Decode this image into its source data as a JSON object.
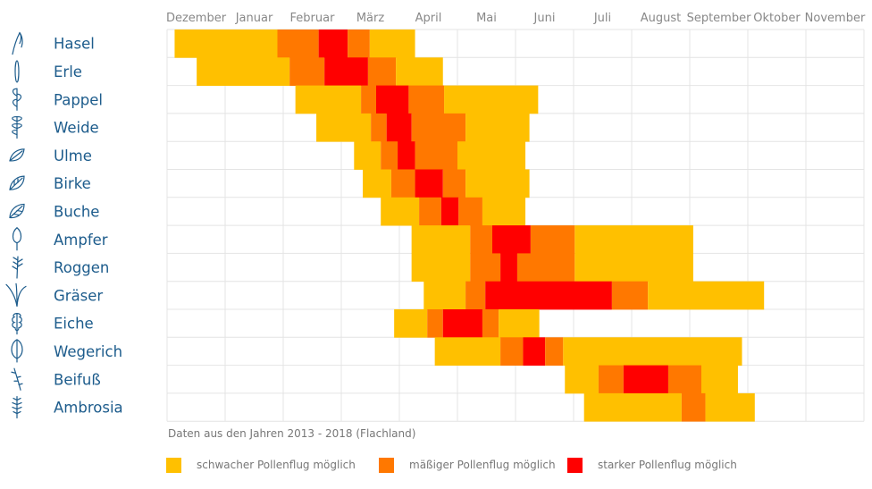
{
  "chart_data": {
    "type": "timeline",
    "months": [
      "Dezember",
      "Januar",
      "Februar",
      "März",
      "April",
      "Mai",
      "Juni",
      "Juli",
      "August",
      "September",
      "Oktober",
      "November"
    ],
    "colors": {
      "weak": "#ffc000",
      "moderate": "#ff7800",
      "strong": "#ff0000"
    },
    "plants": [
      {
        "name": "Hasel",
        "icon": "hazel-catkin-icon",
        "segments": [
          {
            "start": 0.13,
            "end": 1.9,
            "level": "weak"
          },
          {
            "start": 1.9,
            "end": 2.61,
            "level": "moderate"
          },
          {
            "start": 2.61,
            "end": 3.11,
            "level": "strong"
          },
          {
            "start": 3.11,
            "end": 3.49,
            "level": "moderate"
          },
          {
            "start": 3.49,
            "end": 4.27,
            "level": "weak"
          }
        ]
      },
      {
        "name": "Erle",
        "icon": "alder-catkin-icon",
        "segments": [
          {
            "start": 0.51,
            "end": 2.11,
            "level": "weak"
          },
          {
            "start": 2.11,
            "end": 2.71,
            "level": "moderate"
          },
          {
            "start": 2.71,
            "end": 3.46,
            "level": "strong"
          },
          {
            "start": 3.46,
            "end": 3.94,
            "level": "moderate"
          },
          {
            "start": 3.94,
            "end": 4.75,
            "level": "weak"
          }
        ]
      },
      {
        "name": "Pappel",
        "icon": "poplar-branch-icon",
        "segments": [
          {
            "start": 2.21,
            "end": 3.34,
            "level": "weak"
          },
          {
            "start": 3.34,
            "end": 3.6,
            "level": "moderate"
          },
          {
            "start": 3.6,
            "end": 4.16,
            "level": "strong"
          },
          {
            "start": 4.16,
            "end": 4.77,
            "level": "moderate"
          },
          {
            "start": 4.77,
            "end": 6.39,
            "level": "weak"
          }
        ]
      },
      {
        "name": "Weide",
        "icon": "willow-branch-icon",
        "segments": [
          {
            "start": 2.57,
            "end": 3.51,
            "level": "weak"
          },
          {
            "start": 3.51,
            "end": 3.78,
            "level": "moderate"
          },
          {
            "start": 3.78,
            "end": 4.21,
            "level": "strong"
          },
          {
            "start": 4.21,
            "end": 5.14,
            "level": "moderate"
          },
          {
            "start": 5.14,
            "end": 6.24,
            "level": "weak"
          }
        ]
      },
      {
        "name": "Ulme",
        "icon": "elm-leaf-icon",
        "segments": [
          {
            "start": 3.22,
            "end": 3.68,
            "level": "weak"
          },
          {
            "start": 3.68,
            "end": 3.97,
            "level": "moderate"
          },
          {
            "start": 3.97,
            "end": 4.27,
            "level": "strong"
          },
          {
            "start": 4.27,
            "end": 5.0,
            "level": "moderate"
          },
          {
            "start": 5.0,
            "end": 6.17,
            "level": "weak"
          }
        ]
      },
      {
        "name": "Birke",
        "icon": "birch-leaf-icon",
        "segments": [
          {
            "start": 3.37,
            "end": 3.86,
            "level": "weak"
          },
          {
            "start": 3.86,
            "end": 4.27,
            "level": "moderate"
          },
          {
            "start": 4.27,
            "end": 4.75,
            "level": "strong"
          },
          {
            "start": 4.75,
            "end": 5.14,
            "level": "moderate"
          },
          {
            "start": 5.14,
            "end": 6.24,
            "level": "weak"
          }
        ]
      },
      {
        "name": "Buche",
        "icon": "beech-leaf-icon",
        "segments": [
          {
            "start": 3.68,
            "end": 4.34,
            "level": "weak"
          },
          {
            "start": 4.34,
            "end": 4.72,
            "level": "moderate"
          },
          {
            "start": 4.72,
            "end": 5.02,
            "level": "strong"
          },
          {
            "start": 5.02,
            "end": 5.43,
            "level": "moderate"
          },
          {
            "start": 5.43,
            "end": 6.17,
            "level": "weak"
          }
        ]
      },
      {
        "name": "Ampfer",
        "icon": "sorrel-leaf-icon",
        "segments": [
          {
            "start": 4.21,
            "end": 5.22,
            "level": "weak"
          },
          {
            "start": 5.22,
            "end": 5.6,
            "level": "moderate"
          },
          {
            "start": 5.6,
            "end": 6.26,
            "level": "strong"
          },
          {
            "start": 6.26,
            "end": 7.02,
            "level": "moderate"
          },
          {
            "start": 7.02,
            "end": 9.06,
            "level": "weak"
          }
        ]
      },
      {
        "name": "Roggen",
        "icon": "rye-ear-icon",
        "segments": [
          {
            "start": 4.21,
            "end": 5.22,
            "level": "weak"
          },
          {
            "start": 5.22,
            "end": 5.74,
            "level": "moderate"
          },
          {
            "start": 5.74,
            "end": 6.03,
            "level": "strong"
          },
          {
            "start": 6.03,
            "end": 7.02,
            "level": "moderate"
          },
          {
            "start": 7.02,
            "end": 9.06,
            "level": "weak"
          }
        ]
      },
      {
        "name": "Gräser",
        "icon": "grass-icon",
        "segments": [
          {
            "start": 4.42,
            "end": 5.14,
            "level": "weak"
          },
          {
            "start": 5.14,
            "end": 5.48,
            "level": "moderate"
          },
          {
            "start": 5.48,
            "end": 7.66,
            "level": "strong"
          },
          {
            "start": 7.66,
            "end": 8.28,
            "level": "moderate"
          },
          {
            "start": 8.28,
            "end": 10.28,
            "level": "weak"
          }
        ]
      },
      {
        "name": "Eiche",
        "icon": "oak-leaf-icon",
        "segments": [
          {
            "start": 3.91,
            "end": 4.48,
            "level": "weak"
          },
          {
            "start": 4.48,
            "end": 4.75,
            "level": "moderate"
          },
          {
            "start": 4.75,
            "end": 5.43,
            "level": "strong"
          },
          {
            "start": 5.43,
            "end": 5.71,
            "level": "moderate"
          },
          {
            "start": 5.71,
            "end": 6.41,
            "level": "weak"
          }
        ]
      },
      {
        "name": "Wegerich",
        "icon": "plantain-leaf-icon",
        "segments": [
          {
            "start": 4.61,
            "end": 5.74,
            "level": "weak"
          },
          {
            "start": 5.74,
            "end": 6.13,
            "level": "moderate"
          },
          {
            "start": 6.13,
            "end": 6.51,
            "level": "strong"
          },
          {
            "start": 6.51,
            "end": 6.82,
            "level": "moderate"
          },
          {
            "start": 6.82,
            "end": 9.9,
            "level": "weak"
          }
        ]
      },
      {
        "name": "Beifuß",
        "icon": "mugwort-stalk-icon",
        "segments": [
          {
            "start": 6.85,
            "end": 7.43,
            "level": "weak"
          },
          {
            "start": 7.43,
            "end": 7.86,
            "level": "moderate"
          },
          {
            "start": 7.86,
            "end": 8.63,
            "level": "strong"
          },
          {
            "start": 8.63,
            "end": 9.2,
            "level": "moderate"
          },
          {
            "start": 9.2,
            "end": 9.83,
            "level": "weak"
          }
        ]
      },
      {
        "name": "Ambrosia",
        "icon": "ambrosia-plant-icon",
        "segments": [
          {
            "start": 7.18,
            "end": 8.86,
            "level": "weak"
          },
          {
            "start": 8.86,
            "end": 9.27,
            "level": "moderate"
          },
          {
            "start": 9.27,
            "end": 10.12,
            "level": "weak"
          }
        ]
      }
    ],
    "source_note": "Daten aus den Jahren 2013 - 2018 (Flachland)",
    "legend": [
      {
        "level": "weak",
        "label": "schwacher Pollenflug möglich"
      },
      {
        "level": "moderate",
        "label": "mäßiger Pollenflug möglich"
      },
      {
        "level": "strong",
        "label": "starker Pollenflug möglich"
      }
    ]
  }
}
